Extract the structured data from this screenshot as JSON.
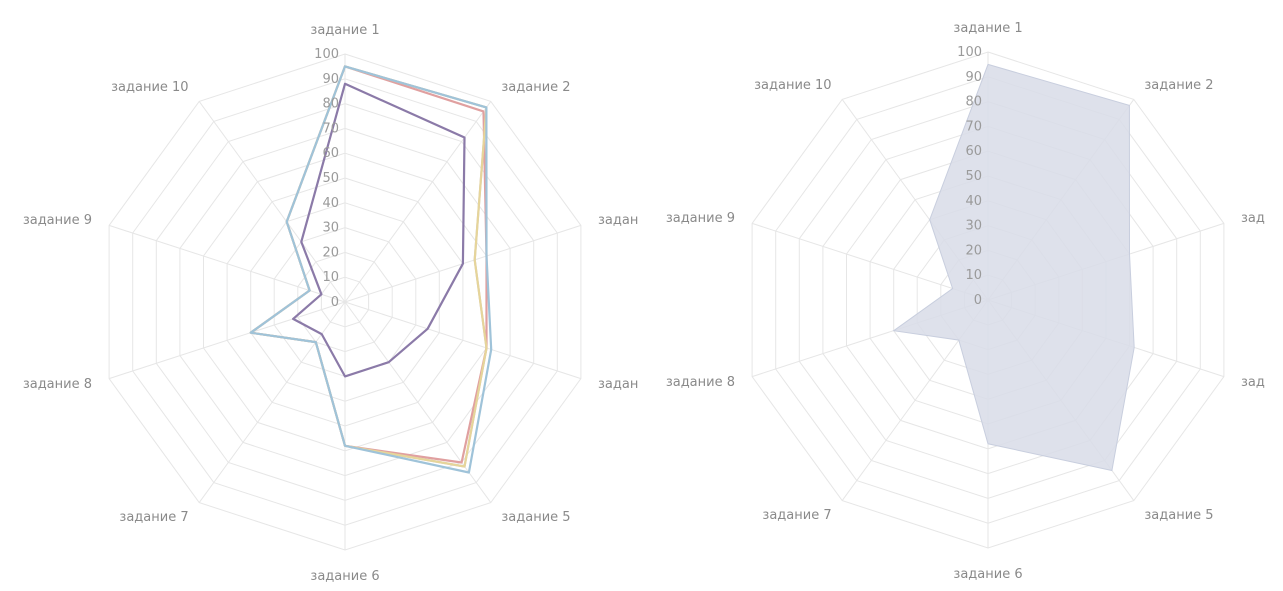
{
  "chart_data": [
    {
      "type": "radar",
      "style": "lines",
      "categories": [
        "задание 1",
        "задание 2",
        "задан",
        "задан",
        "задание 5",
        "задание 6",
        "задание 7",
        "задание 8",
        "задание 9",
        "задание 10"
      ],
      "ticks": [
        "0",
        "10",
        "20",
        "30",
        "40",
        "50",
        "60",
        "70",
        "80",
        "90",
        "100"
      ],
      "rlim": [
        0,
        100
      ],
      "grid": true,
      "legend": "none",
      "series": [
        {
          "color": "#c9c2d8",
          "values": [
            95,
            97,
            55,
            60,
            82,
            58,
            20,
            40,
            15,
            40
          ]
        },
        {
          "color": "#e0a0a0",
          "values": [
            95,
            95,
            60,
            60,
            80,
            58,
            20,
            40,
            15,
            40
          ]
        },
        {
          "color": "#e6d59a",
          "values": [
            95,
            97,
            55,
            60,
            82,
            58,
            20,
            40,
            15,
            40
          ]
        },
        {
          "color": "#9fc3d9",
          "values": [
            95,
            97,
            60,
            62,
            85,
            58,
            20,
            40,
            15,
            40
          ]
        },
        {
          "color": "#8b7aa8",
          "values": [
            88,
            82,
            50,
            35,
            30,
            30,
            16,
            22,
            10,
            30
          ]
        }
      ]
    },
    {
      "type": "radar",
      "style": "filled",
      "categories": [
        "задание 1",
        "задание 2",
        "зад",
        "зад",
        "задание 5",
        "задание 6",
        "задание 7",
        "задание 8",
        "задание 9",
        "задание 10"
      ],
      "ticks": [
        "0",
        "10",
        "20",
        "30",
        "40",
        "50",
        "60",
        "70",
        "80",
        "90",
        "100"
      ],
      "rlim": [
        0,
        100
      ],
      "grid": true,
      "legend": "none",
      "series": [
        {
          "color": "#d8dce8",
          "values": [
            95,
            97,
            60,
            62,
            85,
            58,
            20,
            40,
            15,
            40
          ]
        }
      ]
    }
  ]
}
